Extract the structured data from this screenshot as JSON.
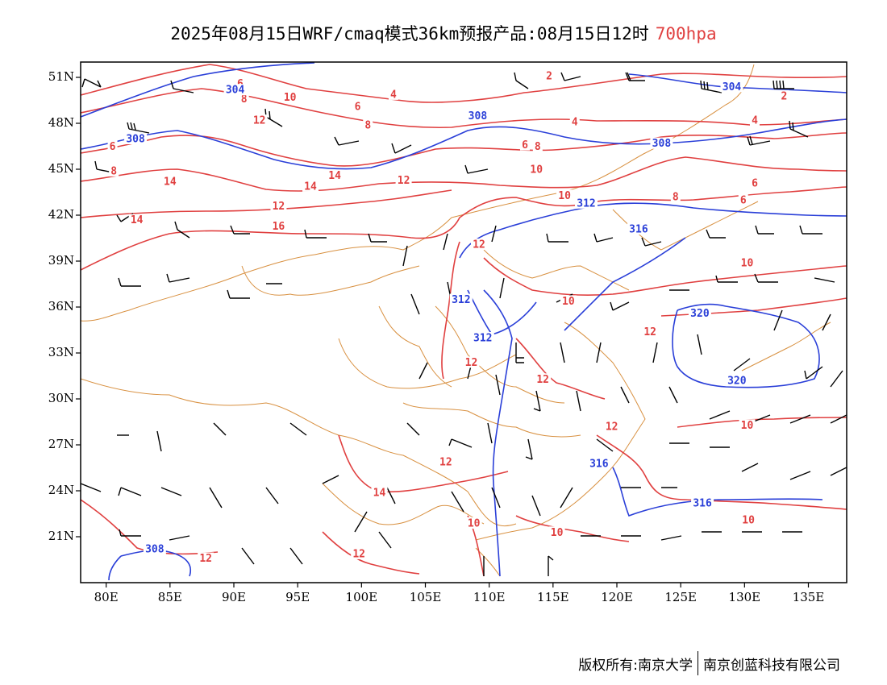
{
  "title": {
    "main": "2025年08月15日WRF/cmaq模式36km预报产品:08月15日12时",
    "level": "700hpa",
    "level_color": "#e04040"
  },
  "copyright": {
    "left": "版权所有:南京大学",
    "right": "南京创蓝科技有限公司"
  },
  "axes": {
    "lon_range": [
      78,
      138
    ],
    "lat_range": [
      18,
      52
    ],
    "lat_ticks": [
      {
        "value": 51,
        "label": "51N"
      },
      {
        "value": 48,
        "label": "48N"
      },
      {
        "value": 45,
        "label": "45N"
      },
      {
        "value": 42,
        "label": "42N"
      },
      {
        "value": 39,
        "label": "39N"
      },
      {
        "value": 36,
        "label": "36N"
      },
      {
        "value": 33,
        "label": "33N"
      },
      {
        "value": 30,
        "label": "30N"
      },
      {
        "value": 27,
        "label": "27N"
      },
      {
        "value": 24,
        "label": "24N"
      },
      {
        "value": 21,
        "label": "21N"
      }
    ],
    "lon_ticks": [
      {
        "value": 80,
        "label": "80E"
      },
      {
        "value": 85,
        "label": "85E"
      },
      {
        "value": 90,
        "label": "90E"
      },
      {
        "value": 95,
        "label": "95E"
      },
      {
        "value": 100,
        "label": "100E"
      },
      {
        "value": 105,
        "label": "105E"
      },
      {
        "value": 110,
        "label": "110E"
      },
      {
        "value": 115,
        "label": "115E"
      },
      {
        "value": 120,
        "label": "120E"
      },
      {
        "value": 125,
        "label": "125E"
      },
      {
        "value": 130,
        "label": "130E"
      },
      {
        "value": 135,
        "label": "135E"
      }
    ]
  },
  "colors": {
    "temperature": "#e04040",
    "geopotential": "#2a3fd8",
    "boundaries": "#d89040",
    "wind": "#000000"
  },
  "temperature_labels": [
    {
      "text": "6",
      "lon": 90.5,
      "lat": 50.6
    },
    {
      "text": "8",
      "lon": 90.8,
      "lat": 49.6
    },
    {
      "text": "10",
      "lon": 94.4,
      "lat": 49.7
    },
    {
      "text": "4",
      "lon": 102.5,
      "lat": 49.9
    },
    {
      "text": "6",
      "lon": 99.7,
      "lat": 49.1
    },
    {
      "text": "8",
      "lon": 100.5,
      "lat": 47.9
    },
    {
      "text": "12",
      "lon": 92.0,
      "lat": 48.2
    },
    {
      "text": "2",
      "lon": 114.7,
      "lat": 51.1
    },
    {
      "text": "2",
      "lon": 133.1,
      "lat": 49.8
    },
    {
      "text": "4",
      "lon": 116.7,
      "lat": 48.1
    },
    {
      "text": "4",
      "lon": 130.8,
      "lat": 48.2
    },
    {
      "text": "6",
      "lon": 80.5,
      "lat": 46.5
    },
    {
      "text": "6",
      "lon": 112.8,
      "lat": 46.6
    },
    {
      "text": "8",
      "lon": 113.8,
      "lat": 46.5
    },
    {
      "text": "8",
      "lon": 80.6,
      "lat": 44.9
    },
    {
      "text": "10",
      "lon": 113.7,
      "lat": 45.0
    },
    {
      "text": "14",
      "lon": 97.9,
      "lat": 44.6
    },
    {
      "text": "14",
      "lon": 85.0,
      "lat": 44.2
    },
    {
      "text": "14",
      "lon": 96.0,
      "lat": 43.9
    },
    {
      "text": "12",
      "lon": 103.3,
      "lat": 44.3
    },
    {
      "text": "10",
      "lon": 115.9,
      "lat": 43.3
    },
    {
      "text": "8",
      "lon": 124.6,
      "lat": 43.2
    },
    {
      "text": "6",
      "lon": 130.8,
      "lat": 44.1
    },
    {
      "text": "6",
      "lon": 129.9,
      "lat": 43.0
    },
    {
      "text": "12",
      "lon": 93.5,
      "lat": 42.6
    },
    {
      "text": "14",
      "lon": 82.4,
      "lat": 41.7
    },
    {
      "text": "16",
      "lon": 93.5,
      "lat": 41.3
    },
    {
      "text": "12",
      "lon": 109.2,
      "lat": 40.1
    },
    {
      "text": "10",
      "lon": 130.2,
      "lat": 38.9
    },
    {
      "text": "10",
      "lon": 116.2,
      "lat": 36.4
    },
    {
      "text": "12",
      "lon": 122.6,
      "lat": 34.4
    },
    {
      "text": "12",
      "lon": 108.6,
      "lat": 32.4
    },
    {
      "text": "12",
      "lon": 114.2,
      "lat": 31.3
    },
    {
      "text": "12",
      "lon": 119.6,
      "lat": 28.2
    },
    {
      "text": "10",
      "lon": 130.2,
      "lat": 28.3
    },
    {
      "text": "12",
      "lon": 106.6,
      "lat": 25.9
    },
    {
      "text": "14",
      "lon": 101.4,
      "lat": 23.9
    },
    {
      "text": "10",
      "lon": 108.8,
      "lat": 21.9
    },
    {
      "text": "10",
      "lon": 115.3,
      "lat": 21.3
    },
    {
      "text": "10",
      "lon": 130.3,
      "lat": 22.1
    },
    {
      "text": "12",
      "lon": 87.8,
      "lat": 19.6
    },
    {
      "text": "12",
      "lon": 99.8,
      "lat": 19.9
    }
  ],
  "geopotential_labels": [
    {
      "text": "304",
      "lon": 90.1,
      "lat": 50.2
    },
    {
      "text": "304",
      "lon": 129.0,
      "lat": 50.4
    },
    {
      "text": "308",
      "lon": 109.1,
      "lat": 48.5
    },
    {
      "text": "308",
      "lon": 123.5,
      "lat": 46.7
    },
    {
      "text": "308",
      "lon": 82.3,
      "lat": 47.0
    },
    {
      "text": "312",
      "lon": 117.6,
      "lat": 42.8
    },
    {
      "text": "316",
      "lon": 121.7,
      "lat": 41.1
    },
    {
      "text": "312",
      "lon": 107.8,
      "lat": 36.5
    },
    {
      "text": "312",
      "lon": 109.5,
      "lat": 34.0
    },
    {
      "text": "320",
      "lon": 126.5,
      "lat": 35.6
    },
    {
      "text": "320",
      "lon": 129.4,
      "lat": 31.2
    },
    {
      "text": "316",
      "lon": 118.6,
      "lat": 25.8
    },
    {
      "text": "316",
      "lon": 126.7,
      "lat": 23.2
    },
    {
      "text": "308",
      "lon": 83.8,
      "lat": 20.2
    }
  ]
}
